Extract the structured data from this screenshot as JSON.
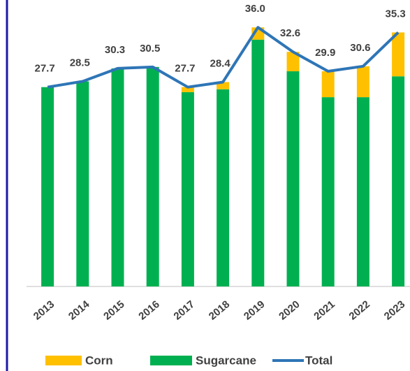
{
  "chart_data": {
    "type": "bar",
    "categories": [
      "2013",
      "2014",
      "2015",
      "2016",
      "2017",
      "2018",
      "2019",
      "2020",
      "2021",
      "2022",
      "2023"
    ],
    "series": [
      {
        "name": "Sugarcane",
        "color": "#00b050",
        "values": [
          27.7,
          28.5,
          30.3,
          30.5,
          27.0,
          27.4,
          34.3,
          29.9,
          26.3,
          26.3,
          29.2
        ]
      },
      {
        "name": "Corn",
        "color": "#ffc000",
        "values": [
          0,
          0,
          0,
          0,
          0.7,
          1.0,
          1.7,
          2.7,
          3.6,
          4.3,
          6.1
        ]
      },
      {
        "name": "Total",
        "color": "#2e75b6",
        "type": "line",
        "values": [
          27.7,
          28.5,
          30.3,
          30.5,
          27.7,
          28.4,
          36.0,
          32.6,
          29.9,
          30.6,
          35.3
        ],
        "value_labels": [
          "27.7",
          "28.5",
          "30.3",
          "30.5",
          "27.7",
          "28.4",
          "36.0",
          "32.6",
          "29.9",
          "30.6",
          "35.3"
        ]
      }
    ],
    "ylim": [
      0,
      40
    ]
  }
}
